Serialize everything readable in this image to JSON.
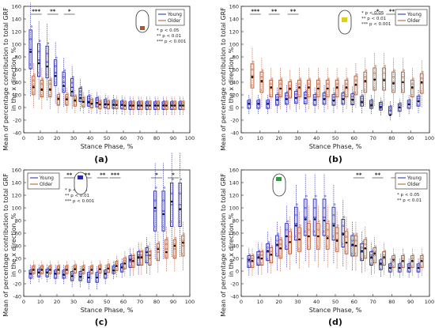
{
  "common": {
    "ylabel_line1": "Mean of percentage contribution to total GRF",
    "ylabel_line2": "in the x direction, %",
    "xlabel": "Stance Phase, %",
    "x_ticks": [
      "0",
      "10",
      "20",
      "30",
      "40",
      "50",
      "60",
      "70",
      "80",
      "90",
      "100"
    ],
    "legend": {
      "young": "Young",
      "older": "Older"
    },
    "colors": {
      "young": "#1f1fb4",
      "older": "#b5522b",
      "youngFill": "#9aa0e6",
      "olderFill": "#e6a98c"
    }
  },
  "chart_data": [
    {
      "type": "box",
      "panel_label": "(a)",
      "ylim": [
        -40,
        160
      ],
      "y_ticks": [
        "-40",
        "-20",
        "0",
        "20",
        "40",
        "60",
        "80",
        "100",
        "120",
        "140",
        "160"
      ],
      "x": [
        5,
        10,
        15,
        20,
        25,
        30,
        35,
        40,
        45,
        50,
        55,
        60,
        65,
        70,
        75,
        80,
        85,
        90,
        95
      ],
      "significance": [
        {
          "x": 7.5,
          "mark": "***"
        },
        {
          "x": 17.5,
          "mark": "**"
        },
        {
          "x": 27.5,
          "mark": "*"
        }
      ],
      "sig_legend": [
        "*  p < 0.05",
        "**  p < 0.01",
        "***  p < 0.001"
      ],
      "highlight_color": "#b5522b",
      "highlight_region": "heel",
      "series": [
        {
          "name": "Young",
          "median": [
            92,
            75,
            72,
            55,
            40,
            32,
            20,
            10,
            8,
            6,
            5,
            4,
            3,
            3,
            3,
            3,
            3,
            3,
            3
          ],
          "mean": [
            88,
            70,
            65,
            50,
            34,
            25,
            15,
            8,
            7,
            5,
            4,
            4,
            3,
            3,
            3,
            3,
            3,
            3,
            3
          ]
        },
        {
          "name": "Older",
          "median": [
            35,
            30,
            30,
            12,
            12,
            10,
            8,
            6,
            4,
            4,
            4,
            3,
            3,
            3,
            3,
            3,
            3,
            3,
            3
          ],
          "mean": [
            32,
            28,
            28,
            14,
            13,
            11,
            9,
            6,
            5,
            5,
            4,
            3,
            3,
            3,
            3,
            3,
            3,
            3,
            3
          ]
        }
      ]
    },
    {
      "type": "box",
      "panel_label": "(b)",
      "ylim": [
        -40,
        160
      ],
      "y_ticks": [
        "-40",
        "-20",
        "0",
        "20",
        "40",
        "60",
        "80",
        "100",
        "120",
        "140",
        "160"
      ],
      "x": [
        5,
        10,
        15,
        20,
        25,
        30,
        35,
        40,
        45,
        50,
        55,
        60,
        65,
        70,
        75,
        80,
        85,
        90,
        95
      ],
      "significance": [
        {
          "x": 7.5,
          "mark": "***"
        },
        {
          "x": 17.5,
          "mark": "**"
        },
        {
          "x": 27.5,
          "mark": "**"
        },
        {
          "x": 72.5,
          "mark": "*"
        },
        {
          "x": 80,
          "mark": "**"
        },
        {
          "x": 87.5,
          "mark": "***"
        }
      ],
      "sig_legend": [
        "*  p < 0.05",
        "**  p < 0.01",
        "***  p < 0.001"
      ],
      "highlight_color": "#d9d020",
      "highlight_region": "midfoot",
      "series": [
        {
          "name": "Young",
          "median": [
            5,
            5,
            5,
            12,
            14,
            16,
            15,
            12,
            14,
            12,
            14,
            13,
            10,
            5,
            2,
            -5,
            0,
            5,
            10
          ],
          "mean": [
            6,
            6,
            6,
            12,
            13,
            15,
            15,
            12,
            13,
            11,
            13,
            12,
            8,
            3,
            0,
            -12,
            0,
            5,
            10
          ]
        },
        {
          "name": "Older",
          "median": [
            50,
            40,
            30,
            30,
            28,
            30,
            30,
            30,
            30,
            30,
            30,
            35,
            40,
            45,
            45,
            40,
            40,
            30,
            38
          ],
          "mean": [
            48,
            42,
            32,
            30,
            30,
            32,
            32,
            30,
            30,
            32,
            32,
            36,
            42,
            44,
            43,
            38,
            40,
            32,
            40
          ]
        }
      ]
    },
    {
      "type": "box",
      "panel_label": "(c)",
      "ylim": [
        -40,
        160
      ],
      "y_ticks": [
        "-40",
        "-20",
        "0",
        "20",
        "40",
        "60",
        "80",
        "100",
        "120",
        "140",
        "160"
      ],
      "x": [
        5,
        10,
        15,
        20,
        25,
        30,
        35,
        40,
        45,
        50,
        55,
        60,
        65,
        70,
        75,
        80,
        85,
        90,
        95
      ],
      "significance": [
        {
          "x": 7.5,
          "mark": "*"
        },
        {
          "x": 17.5,
          "mark": "*"
        },
        {
          "x": 27.5,
          "mark": "**"
        },
        {
          "x": 37.5,
          "mark": "***"
        },
        {
          "x": 47.5,
          "mark": "**"
        },
        {
          "x": 55,
          "mark": "***"
        },
        {
          "x": 80,
          "mark": "*"
        },
        {
          "x": 90,
          "mark": "*"
        }
      ],
      "sig_legend": [
        "*  p < 0.05",
        "**  p < 0.01",
        "***  p < 0.001"
      ],
      "highlight_color": "#2a2aa8",
      "highlight_region": "forefoot",
      "series": [
        {
          "name": "Young",
          "median": [
            -5,
            -3,
            -3,
            -5,
            -5,
            -8,
            -8,
            -10,
            -10,
            -5,
            2,
            5,
            15,
            20,
            25,
            95,
            95,
            105,
            105
          ],
          "mean": [
            -4,
            -2,
            -2,
            -4,
            -6,
            -8,
            -9,
            -10,
            -10,
            -4,
            1,
            6,
            18,
            22,
            30,
            100,
            90,
            110,
            98
          ]
        },
        {
          "name": "Older",
          "median": [
            2,
            2,
            2,
            2,
            2,
            3,
            2,
            2,
            3,
            4,
            8,
            12,
            15,
            20,
            20,
            30,
            35,
            35,
            40
          ],
          "mean": [
            2,
            2,
            2,
            2,
            2,
            3,
            2,
            2,
            3,
            4,
            8,
            12,
            16,
            22,
            25,
            35,
            30,
            40,
            45
          ]
        }
      ]
    },
    {
      "type": "box",
      "panel_label": "(d)",
      "ylim": [
        -40,
        160
      ],
      "y_ticks": [
        "-40",
        "-20",
        "0",
        "20",
        "40",
        "60",
        "80",
        "100",
        "120",
        "140",
        "160"
      ],
      "x": [
        5,
        10,
        15,
        20,
        25,
        30,
        35,
        40,
        45,
        50,
        55,
        60,
        65,
        70,
        75,
        80,
        85,
        90,
        95
      ],
      "significance": [
        {
          "x": 62.5,
          "mark": "**"
        },
        {
          "x": 72.5,
          "mark": "**"
        },
        {
          "x": 82.5,
          "mark": "*"
        }
      ],
      "sig_legend": [
        "*  p < 0.05",
        "**  p < 0.01"
      ],
      "highlight_color": "#2e9e3a",
      "highlight_region": "toes",
      "series": [
        {
          "name": "Young",
          "median": [
            15,
            20,
            30,
            40,
            55,
            75,
            85,
            85,
            85,
            75,
            60,
            40,
            30,
            20,
            10,
            5,
            5,
            5,
            5
          ],
          "mean": [
            18,
            22,
            32,
            42,
            55,
            72,
            82,
            82,
            80,
            72,
            58,
            42,
            32,
            22,
            12,
            5,
            5,
            5,
            5
          ]
        },
        {
          "name": "Older",
          "median": [
            15,
            20,
            25,
            35,
            45,
            50,
            55,
            55,
            55,
            50,
            45,
            40,
            35,
            25,
            20,
            15,
            15,
            15,
            15
          ],
          "mean": [
            16,
            20,
            26,
            36,
            46,
            50,
            55,
            55,
            52,
            48,
            45,
            40,
            36,
            28,
            22,
            18,
            16,
            16,
            16
          ]
        }
      ]
    }
  ]
}
